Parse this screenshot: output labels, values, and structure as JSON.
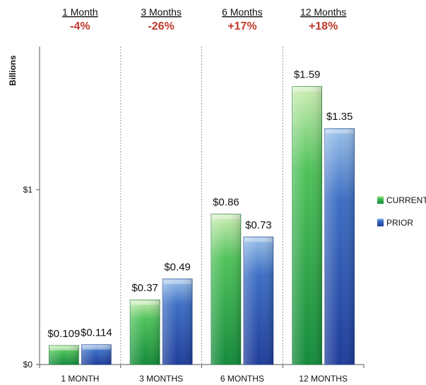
{
  "chart_data": {
    "type": "bar",
    "ylabel": "Billions",
    "ylim": [
      0,
      1.6
    ],
    "yticks": [
      {
        "value": 0,
        "label": "$0"
      },
      {
        "value": 1,
        "label": "$1"
      }
    ],
    "categories": [
      "1 MONTH",
      "3 MONTHS",
      "6 MONTHS",
      "12 MONTHS"
    ],
    "series": [
      {
        "name": "CURRENT",
        "values": [
          0.109,
          0.37,
          0.86,
          1.59
        ],
        "labels": [
          "$0.109",
          "$0.37",
          "$0.86",
          "$1.59"
        ],
        "color": "#1a9a3c"
      },
      {
        "name": "PRIOR",
        "values": [
          0.114,
          0.49,
          0.73,
          1.35
        ],
        "labels": [
          "$0.114",
          "$0.49",
          "$0.73",
          "$1.35"
        ],
        "color": "#2b4fa8"
      }
    ],
    "header": [
      {
        "period": "1 Month",
        "change": "-4%"
      },
      {
        "period": "3 Months",
        "change": "-26%"
      },
      {
        "period": "6 Months",
        "change": "+17%"
      },
      {
        "period": "12 Months",
        "change": "+18%"
      }
    ],
    "legend_position": "right",
    "grid": "vertical dotted separators"
  }
}
